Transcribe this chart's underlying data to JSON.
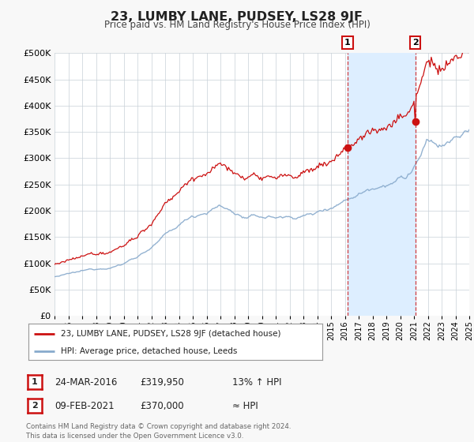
{
  "title": "23, LUMBY LANE, PUDSEY, LS28 9JF",
  "subtitle": "Price paid vs. HM Land Registry's House Price Index (HPI)",
  "legend_label_red": "23, LUMBY LANE, PUDSEY, LS28 9JF (detached house)",
  "legend_label_blue": "HPI: Average price, detached house, Leeds",
  "annotation1_date": "24-MAR-2016",
  "annotation1_price": "£319,950",
  "annotation1_note": "13% ↑ HPI",
  "annotation1_year": 2016.2,
  "annotation1_value": 319950,
  "annotation2_date": "09-FEB-2021",
  "annotation2_price": "£370,000",
  "annotation2_note": "≈ HPI",
  "annotation2_year": 2021.1,
  "annotation2_value": 370000,
  "ylim": [
    0,
    500000
  ],
  "xlim_start": 1995,
  "xlim_end": 2025,
  "grid_color": "#c8d0d8",
  "red_color": "#cc1111",
  "blue_color": "#88aacc",
  "span_color": "#ddeeff",
  "bg_color": "#f8f8f8",
  "plot_bg": "#ffffff",
  "footnote": "Contains HM Land Registry data © Crown copyright and database right 2024.\nThis data is licensed under the Open Government Licence v3.0."
}
